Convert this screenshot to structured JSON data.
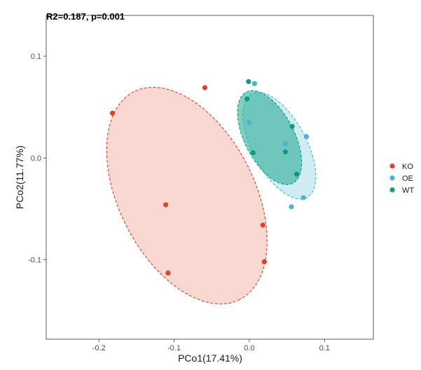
{
  "chart_data": {
    "type": "scatter",
    "title": "",
    "annotation": "R2=0.187, p=0.001",
    "xlabel": "PCo1(17.41%)",
    "ylabel": "PCo2(11.77%)",
    "xlim": [
      -0.27,
      0.165
    ],
    "ylim": [
      -0.178,
      0.14
    ],
    "xticks": [
      -0.2,
      -0.1,
      0.0,
      0.1
    ],
    "xtick_labels": [
      "-0.2",
      "-0.1",
      "0.0",
      "0.1"
    ],
    "yticks": [
      -0.1,
      0.0,
      0.1
    ],
    "ytick_labels": [
      "-0.1",
      "0.0",
      "0.1"
    ],
    "grid": false,
    "legend_position": "right",
    "series": [
      {
        "name": "KO",
        "color": "#D6452F",
        "fill": "#F4B8AD",
        "points": [
          [
            -0.182,
            0.044
          ],
          [
            -0.059,
            0.069
          ],
          [
            -0.111,
            -0.046
          ],
          [
            -0.108,
            -0.113
          ],
          [
            0.018,
            -0.066
          ],
          [
            0.02,
            -0.102
          ]
        ]
      },
      {
        "name": "OE",
        "color": "#4DB3D3",
        "fill": "#A8DCE8",
        "points": [
          [
            0.007,
            0.073
          ],
          [
            0.0,
            0.035
          ],
          [
            0.048,
            0.014
          ],
          [
            0.076,
            0.021
          ],
          [
            0.072,
            -0.039
          ],
          [
            0.056,
            -0.048
          ]
        ]
      },
      {
        "name": "WT",
        "color": "#0C9A82",
        "fill": "#2EAE98",
        "points": [
          [
            -0.001,
            0.075
          ],
          [
            -0.003,
            0.058
          ],
          [
            0.057,
            0.031
          ],
          [
            0.005,
            0.005
          ],
          [
            0.048,
            0.006
          ],
          [
            0.063,
            -0.016
          ]
        ]
      }
    ],
    "ellipses": [
      {
        "group": "KO",
        "cx": -0.083,
        "cy": -0.037,
        "rx": 0.155,
        "ry": 0.09,
        "angle": 63
      },
      {
        "group": "OE",
        "cx": 0.04,
        "cy": 0.012,
        "rx": 0.078,
        "ry": 0.036,
        "angle": 62
      },
      {
        "group": "WT",
        "cx": 0.027,
        "cy": 0.02,
        "rx": 0.068,
        "ry": 0.033,
        "angle": 63
      }
    ]
  }
}
